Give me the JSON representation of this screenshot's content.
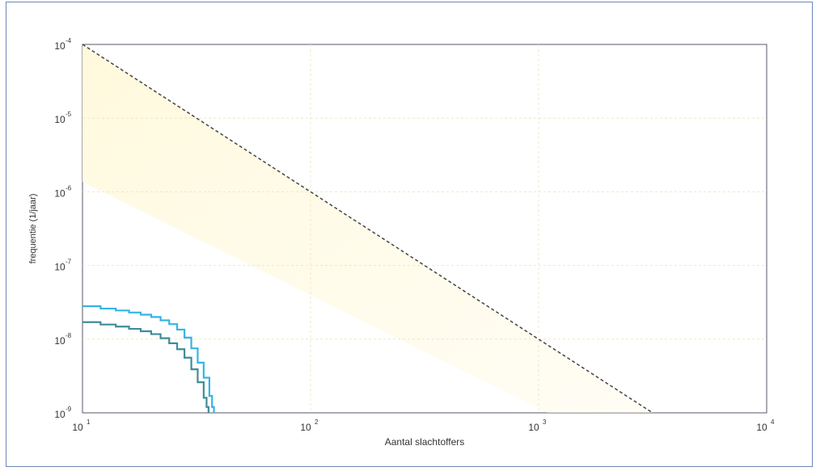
{
  "chart_data": {
    "type": "line",
    "title": "",
    "xlabel": "Aantal slachtoffers",
    "ylabel": "frequentie (1/jaar)",
    "xscale": "log",
    "yscale": "log",
    "xlim": [
      10,
      10000
    ],
    "ylim": [
      1e-09,
      0.0001
    ],
    "x_ticks": [
      {
        "base": "10",
        "exp": "1",
        "value": 10
      },
      {
        "base": "10",
        "exp": "2",
        "value": 100
      },
      {
        "base": "10",
        "exp": "3",
        "value": 1000
      },
      {
        "base": "10",
        "exp": "4",
        "value": 10000
      }
    ],
    "y_ticks": [
      {
        "base": "10",
        "exp": "-4",
        "value": 0.0001
      },
      {
        "base": "10",
        "exp": "-5",
        "value": 1e-05
      },
      {
        "base": "10",
        "exp": "-6",
        "value": 1e-06
      },
      {
        "base": "10",
        "exp": "-7",
        "value": 1e-07
      },
      {
        "base": "10",
        "exp": "-8",
        "value": 1e-08
      },
      {
        "base": "10",
        "exp": "-9",
        "value": 1e-09
      }
    ],
    "grid": true,
    "legend": "none",
    "series": [
      {
        "style": "dashed",
        "color": "#444444",
        "x": [
          10,
          3162
        ],
        "y": [
          0.0001,
          1e-09
        ]
      },
      {
        "style": "step",
        "color": "#35b4e6",
        "x": [
          10,
          12,
          14,
          16,
          18,
          20,
          22,
          24,
          26,
          28,
          30,
          32,
          34,
          36,
          37,
          37.7
        ],
        "y": [
          2.8e-08,
          2.6e-08,
          2.45e-08,
          2.3e-08,
          2.15e-08,
          2e-08,
          1.8e-08,
          1.6e-08,
          1.35e-08,
          1.05e-08,
          7.5e-09,
          4.8e-09,
          3e-09,
          1.7e-09,
          1.2e-09,
          1e-09
        ]
      },
      {
        "style": "step",
        "color": "#3f8c9a",
        "x": [
          10,
          12,
          14,
          16,
          18,
          20,
          22,
          24,
          26,
          28,
          30,
          32,
          34,
          35,
          35.7
        ],
        "y": [
          1.7e-08,
          1.58e-08,
          1.48e-08,
          1.38e-08,
          1.28e-08,
          1.17e-08,
          1.03e-08,
          8.8e-09,
          7.3e-09,
          5.6e-09,
          3.9e-09,
          2.6e-09,
          1.6e-09,
          1.2e-09,
          1e-09
        ]
      }
    ]
  }
}
